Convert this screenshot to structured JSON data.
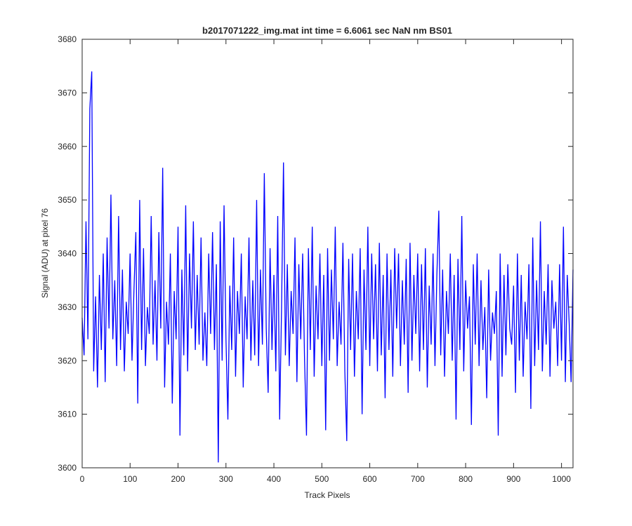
{
  "chart_data": {
    "type": "line",
    "title": "b2017071222_img.mat int time = 6.6061 sec  NaN nm BS01",
    "xlabel": "Track Pixels",
    "ylabel": "Signal (ADU) at pixel 76",
    "color": "#0000ff",
    "xlim": [
      0,
      1024
    ],
    "ylim": [
      3600,
      3680
    ],
    "xticks": [
      0,
      100,
      200,
      300,
      400,
      500,
      600,
      700,
      800,
      900,
      1000
    ],
    "yticks": [
      3600,
      3610,
      3620,
      3630,
      3640,
      3650,
      3660,
      3670,
      3680
    ],
    "x": [
      0,
      4,
      8,
      12,
      16,
      20,
      24,
      28,
      32,
      36,
      40,
      44,
      48,
      52,
      56,
      60,
      64,
      68,
      72,
      76,
      80,
      84,
      88,
      92,
      96,
      100,
      104,
      108,
      112,
      116,
      120,
      124,
      128,
      132,
      136,
      140,
      144,
      148,
      152,
      156,
      160,
      164,
      168,
      172,
      176,
      180,
      184,
      188,
      192,
      196,
      200,
      204,
      208,
      212,
      216,
      220,
      224,
      228,
      232,
      236,
      240,
      244,
      248,
      252,
      256,
      260,
      264,
      268,
      272,
      276,
      280,
      284,
      288,
      292,
      296,
      300,
      304,
      308,
      312,
      316,
      320,
      324,
      328,
      332,
      336,
      340,
      344,
      348,
      352,
      356,
      360,
      364,
      368,
      372,
      376,
      380,
      384,
      388,
      392,
      396,
      400,
      404,
      408,
      412,
      416,
      420,
      424,
      428,
      432,
      436,
      440,
      444,
      448,
      452,
      456,
      460,
      464,
      468,
      472,
      476,
      480,
      484,
      488,
      492,
      496,
      500,
      504,
      508,
      512,
      516,
      520,
      524,
      528,
      532,
      536,
      540,
      544,
      548,
      552,
      556,
      560,
      564,
      568,
      572,
      576,
      580,
      584,
      588,
      592,
      596,
      600,
      604,
      608,
      612,
      616,
      620,
      624,
      628,
      632,
      636,
      640,
      644,
      648,
      652,
      656,
      660,
      664,
      668,
      672,
      676,
      680,
      684,
      688,
      692,
      696,
      700,
      704,
      708,
      712,
      716,
      720,
      724,
      728,
      732,
      736,
      740,
      744,
      748,
      752,
      756,
      760,
      764,
      768,
      772,
      776,
      780,
      784,
      788,
      792,
      796,
      800,
      804,
      808,
      812,
      816,
      820,
      824,
      828,
      832,
      836,
      840,
      844,
      848,
      852,
      856,
      860,
      864,
      868,
      872,
      876,
      880,
      884,
      888,
      892,
      896,
      900,
      904,
      908,
      912,
      916,
      920,
      924,
      928,
      932,
      936,
      940,
      944,
      948,
      952,
      956,
      960,
      964,
      968,
      972,
      976,
      980,
      984,
      988,
      992,
      996,
      1000,
      1004,
      1008,
      1012,
      1016,
      1020,
      1024
    ],
    "values": [
      3628,
      3621,
      3646,
      3624,
      3667,
      3674,
      3618,
      3632,
      3615,
      3636,
      3622,
      3640,
      3616,
      3643,
      3626,
      3651,
      3624,
      3635,
      3619,
      3647,
      3622,
      3637,
      3618,
      3631,
      3625,
      3640,
      3620,
      3633,
      3644,
      3612,
      3650,
      3622,
      3641,
      3619,
      3630,
      3625,
      3647,
      3623,
      3635,
      3620,
      3644,
      3626,
      3656,
      3615,
      3631,
      3623,
      3640,
      3612,
      3633,
      3624,
      3645,
      3606,
      3637,
      3621,
      3649,
      3618,
      3640,
      3626,
      3646,
      3622,
      3636,
      3623,
      3643,
      3620,
      3629,
      3619,
      3640,
      3625,
      3644,
      3622,
      3638,
      3601,
      3646,
      3620,
      3649,
      3624,
      3609,
      3634,
      3622,
      3643,
      3617,
      3633,
      3625,
      3640,
      3615,
      3632,
      3624,
      3643,
      3620,
      3635,
      3621,
      3650,
      3619,
      3637,
      3623,
      3655,
      3626,
      3614,
      3641,
      3622,
      3636,
      3618,
      3647,
      3609,
      3630,
      3657,
      3621,
      3638,
      3619,
      3633,
      3625,
      3643,
      3616,
      3638,
      3624,
      3640,
      3620,
      3606,
      3641,
      3622,
      3645,
      3617,
      3634,
      3624,
      3640,
      3619,
      3636,
      3607,
      3641,
      3620,
      3637,
      3624,
      3645,
      3619,
      3631,
      3623,
      3642,
      3618,
      3605,
      3639,
      3622,
      3640,
      3617,
      3633,
      3624,
      3641,
      3610,
      3637,
      3622,
      3645,
      3619,
      3640,
      3624,
      3638,
      3618,
      3642,
      3621,
      3636,
      3613,
      3640,
      3622,
      3637,
      3617,
      3641,
      3626,
      3640,
      3619,
      3635,
      3623,
      3639,
      3614,
      3642,
      3620,
      3636,
      3625,
      3640,
      3618,
      3638,
      3622,
      3641,
      3615,
      3634,
      3623,
      3640,
      3619,
      3636,
      3648,
      3621,
      3637,
      3617,
      3633,
      3625,
      3640,
      3620,
      3636,
      3609,
      3639,
      3622,
      3647,
      3618,
      3635,
      3626,
      3632,
      3608,
      3638,
      3623,
      3640,
      3619,
      3635,
      3622,
      3630,
      3613,
      3637,
      3620,
      3629,
      3625,
      3633,
      3606,
      3640,
      3617,
      3636,
      3621,
      3638,
      3626,
      3623,
      3634,
      3614,
      3640,
      3620,
      3636,
      3617,
      3631,
      3624,
      3638,
      3611,
      3643,
      3619,
      3635,
      3622,
      3646,
      3618,
      3633,
      3623,
      3638,
      3617,
      3635,
      3626,
      3631,
      3619,
      3638,
      3620,
      3645,
      3616,
      3636,
      3627,
      3616,
      3637
    ]
  }
}
